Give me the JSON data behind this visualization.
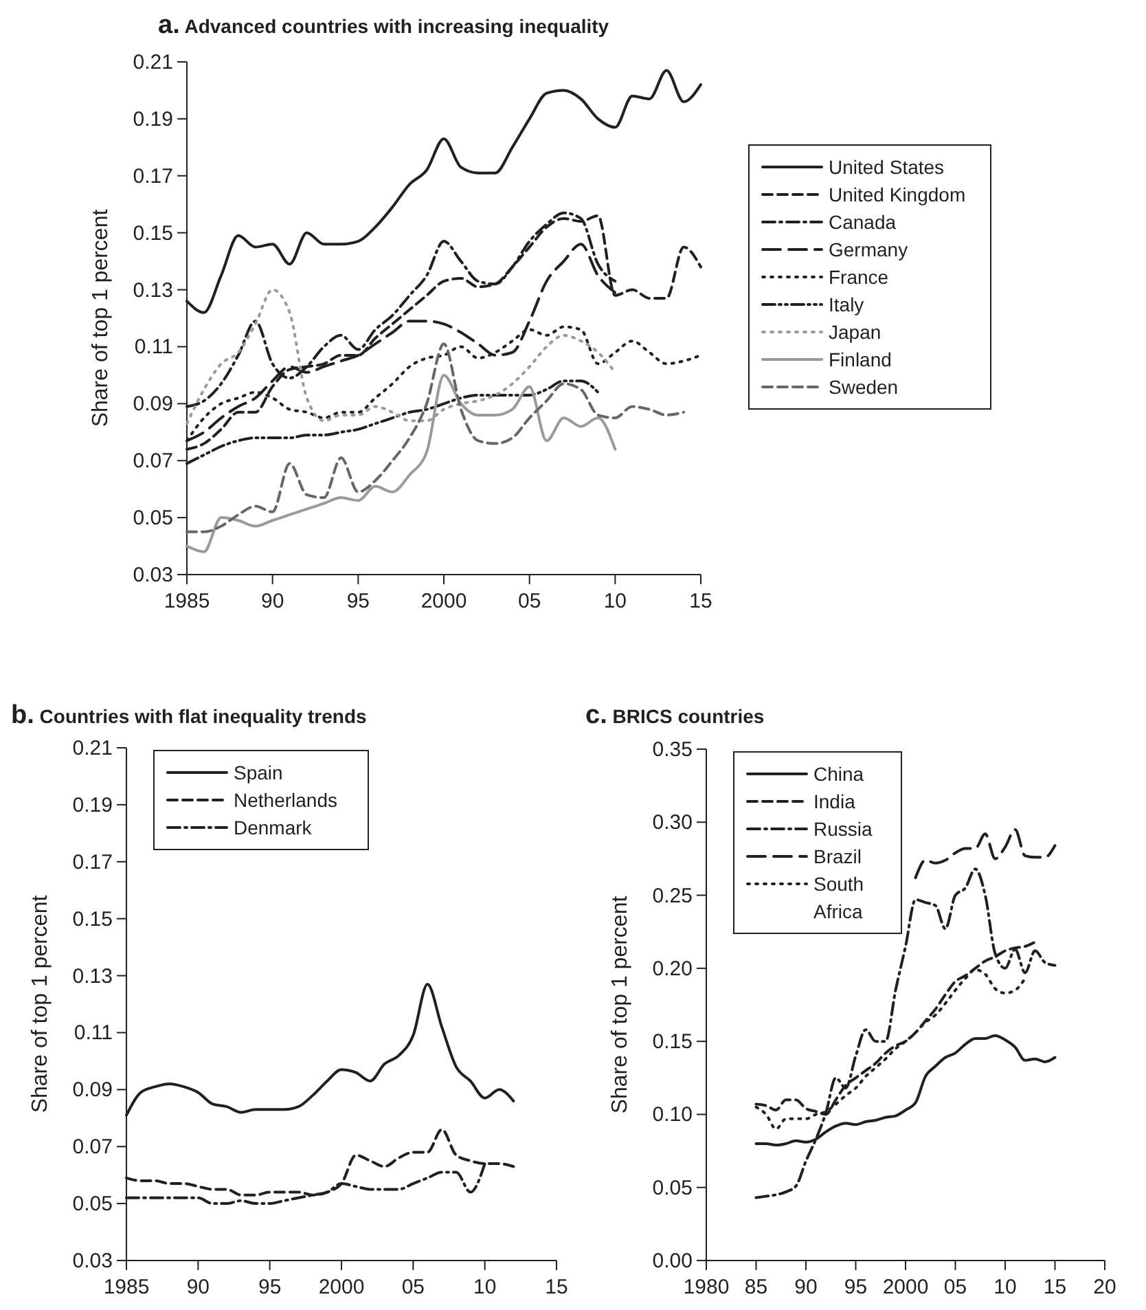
{
  "chart_data": [
    {
      "type": "line",
      "title": "a. Advanced countries with increasing inequality",
      "ylabel": "Share of top 1 percent",
      "x": [
        1985,
        1986,
        1987,
        1988,
        1989,
        1990,
        1991,
        1992,
        1993,
        1994,
        1995,
        1996,
        1997,
        1998,
        1999,
        2000,
        2001,
        2002,
        2003,
        2004,
        2005,
        2006,
        2007,
        2008,
        2009,
        2010,
        2011,
        2012,
        2013,
        2014,
        2015
      ],
      "xlim": [
        1985,
        2015
      ],
      "xticks": [
        1985,
        {
          "value": 1990,
          "label": "90"
        },
        {
          "value": 1995,
          "label": "95"
        },
        2000,
        {
          "value": 2005,
          "label": "05"
        },
        {
          "value": 2010,
          "label": "10"
        },
        {
          "value": 2015,
          "label": "15"
        }
      ],
      "ylim": [
        0.03,
        0.21
      ],
      "yticks": [
        0.03,
        0.05,
        0.07,
        0.09,
        0.11,
        0.13,
        0.15,
        0.17,
        0.19,
        0.21
      ],
      "legend": "right",
      "series": [
        {
          "name": "United States",
          "color": "#231f20",
          "line_style": "solid",
          "values": [
            0.126,
            0.122,
            0.135,
            0.149,
            0.145,
            0.146,
            0.139,
            0.15,
            0.146,
            0.146,
            0.147,
            0.152,
            0.159,
            0.167,
            0.172,
            0.183,
            0.173,
            0.171,
            0.171,
            0.18,
            0.19,
            0.199,
            0.2,
            0.197,
            0.19,
            0.187,
            0.198,
            0.197,
            0.207,
            0.196,
            0.202
          ]
        },
        {
          "name": "United Kingdom",
          "color": "#231f20",
          "line_style": "dashed",
          "values": [
            0.074,
            0.076,
            0.081,
            0.087,
            0.087,
            0.096,
            0.102,
            0.103,
            0.104,
            0.107,
            0.107,
            0.113,
            0.118,
            0.123,
            0.128,
            0.133,
            0.134,
            0.131,
            0.132,
            0.138,
            0.145,
            0.152,
            0.155,
            0.154,
            0.156,
            0.128,
            0.13,
            0.127,
            0.127,
            0.145,
            0.138
          ]
        },
        {
          "name": "Canada",
          "color": "#231f20",
          "line_style": "dashdot",
          "values": [
            0.089,
            0.091,
            0.097,
            0.107,
            0.119,
            0.104,
            0.099,
            0.103,
            0.11,
            0.114,
            0.109,
            0.116,
            0.121,
            0.128,
            0.135,
            0.147,
            0.14,
            0.133,
            0.132,
            0.138,
            0.147,
            0.153,
            0.157,
            0.155,
            0.139,
            0.133,
            null,
            null,
            null,
            null,
            null
          ]
        },
        {
          "name": "Germany",
          "color": "#231f20",
          "line_style": "longdash",
          "values": [
            0.077,
            0.08,
            0.085,
            0.089,
            0.092,
            0.098,
            0.103,
            0.101,
            0.103,
            0.105,
            0.107,
            0.111,
            0.115,
            0.119,
            0.119,
            0.118,
            0.115,
            0.111,
            0.107,
            0.108,
            0.119,
            0.133,
            0.14,
            0.146,
            0.135,
            0.129,
            null,
            null,
            null,
            null,
            null
          ]
        },
        {
          "name": "France",
          "color": "#231f20",
          "line_style": "dotted",
          "values": [
            0.077,
            0.085,
            0.09,
            0.092,
            0.094,
            0.092,
            0.088,
            0.087,
            0.085,
            0.087,
            0.087,
            0.092,
            0.097,
            0.103,
            0.106,
            0.107,
            0.11,
            0.106,
            0.108,
            0.112,
            0.116,
            0.114,
            0.117,
            0.116,
            0.104,
            0.108,
            0.112,
            0.108,
            0.104,
            0.105,
            0.107
          ]
        },
        {
          "name": "Italy",
          "color": "#231f20",
          "line_style": "dashdotdot",
          "values": [
            0.069,
            0.072,
            0.075,
            0.077,
            0.078,
            0.078,
            0.078,
            0.079,
            0.079,
            0.08,
            0.081,
            0.083,
            0.085,
            0.087,
            0.088,
            0.09,
            0.092,
            0.093,
            0.093,
            0.093,
            0.093,
            0.095,
            0.098,
            0.098,
            0.094,
            null,
            null,
            null,
            null,
            null,
            null
          ]
        },
        {
          "name": "Japan",
          "color": "#9a9a9a",
          "line_style": "dotted",
          "values": [
            0.083,
            0.095,
            0.104,
            0.108,
            0.118,
            0.13,
            0.122,
            0.092,
            0.084,
            0.086,
            0.086,
            0.089,
            0.087,
            0.084,
            0.084,
            0.088,
            0.09,
            0.091,
            0.093,
            0.097,
            0.103,
            0.11,
            0.114,
            0.112,
            0.108,
            0.101,
            null,
            null,
            null,
            null,
            null
          ]
        },
        {
          "name": "Finland",
          "color": "#9a9a9a",
          "line_style": "solid",
          "values": [
            0.04,
            0.038,
            0.05,
            0.049,
            0.047,
            0.049,
            0.051,
            0.053,
            0.055,
            0.057,
            0.056,
            0.061,
            0.059,
            0.065,
            0.073,
            0.1,
            0.09,
            0.086,
            0.086,
            0.088,
            0.096,
            0.077,
            0.085,
            0.082,
            0.085,
            0.074,
            null,
            null,
            null,
            null,
            null
          ]
        },
        {
          "name": "Sweden",
          "color": "#666666",
          "line_style": "dashed",
          "values": [
            0.045,
            0.045,
            0.047,
            0.051,
            0.054,
            0.052,
            0.069,
            0.058,
            0.057,
            0.071,
            0.059,
            0.063,
            0.07,
            0.078,
            0.09,
            0.111,
            0.088,
            0.077,
            0.076,
            0.078,
            0.085,
            0.091,
            0.097,
            0.095,
            0.086,
            0.085,
            0.089,
            0.088,
            0.086,
            0.087,
            null
          ]
        }
      ]
    },
    {
      "type": "line",
      "title": "b. Countries with flat inequality trends",
      "ylabel": "Share of top 1 percent",
      "x": [
        1985,
        1986,
        1987,
        1988,
        1989,
        1990,
        1991,
        1992,
        1993,
        1994,
        1995,
        1996,
        1997,
        1998,
        1999,
        2000,
        2001,
        2002,
        2003,
        2004,
        2005,
        2006,
        2007,
        2008,
        2009,
        2010,
        2011,
        2012
      ],
      "xlim": [
        1985,
        2015
      ],
      "xticks": [
        1985,
        {
          "value": 1990,
          "label": "90"
        },
        {
          "value": 1995,
          "label": "95"
        },
        2000,
        {
          "value": 2005,
          "label": "05"
        },
        {
          "value": 2010,
          "label": "10"
        },
        {
          "value": 2015,
          "label": "15"
        }
      ],
      "ylim": [
        0.03,
        0.21
      ],
      "yticks": [
        0.03,
        0.05,
        0.07,
        0.09,
        0.11,
        0.13,
        0.15,
        0.17,
        0.19,
        0.21
      ],
      "legend": "top left",
      "series": [
        {
          "name": "Spain",
          "color": "#231f20",
          "line_style": "solid",
          "values": [
            0.081,
            0.089,
            0.091,
            0.092,
            0.091,
            0.089,
            0.085,
            0.084,
            0.082,
            0.083,
            0.083,
            0.083,
            0.084,
            0.088,
            0.093,
            0.097,
            0.096,
            0.093,
            0.099,
            0.102,
            0.109,
            0.127,
            0.112,
            0.098,
            0.093,
            0.087,
            0.09,
            0.086
          ]
        },
        {
          "name": "Netherlands",
          "color": "#231f20",
          "line_style": "dashed",
          "values": [
            0.059,
            0.058,
            0.058,
            0.057,
            0.057,
            0.056,
            0.055,
            0.055,
            0.053,
            0.053,
            0.054,
            0.054,
            0.054,
            0.053,
            0.054,
            0.057,
            0.067,
            0.065,
            0.063,
            0.066,
            0.068,
            0.068,
            0.076,
            0.067,
            0.065,
            0.064,
            0.064,
            0.063
          ]
        },
        {
          "name": "Denmark",
          "color": "#231f20",
          "line_style": "dashdot",
          "values": [
            0.052,
            0.052,
            0.052,
            0.052,
            0.052,
            0.052,
            0.05,
            0.05,
            0.051,
            0.05,
            0.05,
            0.051,
            0.052,
            0.053,
            0.054,
            0.057,
            0.056,
            0.055,
            0.055,
            0.055,
            0.057,
            0.059,
            0.061,
            0.061,
            0.054,
            0.064,
            null,
            null
          ]
        }
      ]
    },
    {
      "type": "line",
      "title": "c. BRICS countries",
      "ylabel": "Share of top 1 percent",
      "x": [
        1985,
        1986,
        1987,
        1988,
        1989,
        1990,
        1991,
        1992,
        1993,
        1994,
        1995,
        1996,
        1997,
        1998,
        1999,
        2000,
        2001,
        2002,
        2003,
        2004,
        2005,
        2006,
        2007,
        2008,
        2009,
        2010,
        2011,
        2012,
        2013,
        2014,
        2015
      ],
      "xlim": [
        1980,
        2020
      ],
      "xticks": [
        1980,
        {
          "value": 1985,
          "label": "85"
        },
        {
          "value": 1990,
          "label": "90"
        },
        {
          "value": 1995,
          "label": "95"
        },
        2000,
        {
          "value": 2005,
          "label": "05"
        },
        {
          "value": 2010,
          "label": "10"
        },
        {
          "value": 2015,
          "label": "15"
        },
        {
          "value": 2020,
          "label": "20"
        }
      ],
      "ylim": [
        0,
        0.35
      ],
      "yticks": [
        {
          "value": 0,
          "label": "0.00"
        },
        0.05,
        {
          "value": 0.1,
          "label": "0.10"
        },
        0.15,
        {
          "value": 0.2,
          "label": "0.20"
        },
        0.25,
        {
          "value": 0.3,
          "label": "0.30"
        },
        0.35
      ],
      "legend": "top left",
      "series": [
        {
          "name": "China",
          "color": "#231f20",
          "line_style": "solid",
          "values": [
            0.08,
            0.08,
            0.079,
            0.08,
            0.082,
            0.081,
            0.083,
            0.088,
            0.092,
            0.094,
            0.093,
            0.095,
            0.096,
            0.098,
            0.099,
            0.103,
            0.108,
            0.126,
            0.133,
            0.139,
            0.142,
            0.148,
            0.152,
            0.152,
            0.154,
            0.151,
            0.146,
            0.137,
            0.138,
            0.136,
            0.139
          ]
        },
        {
          "name": "India",
          "color": "#231f20",
          "line_style": "dashed",
          "values": [
            0.107,
            0.106,
            0.103,
            0.11,
            0.11,
            0.104,
            0.102,
            0.1,
            0.11,
            0.12,
            0.125,
            0.13,
            0.135,
            0.142,
            0.147,
            0.15,
            0.156,
            0.164,
            0.172,
            0.182,
            0.191,
            0.195,
            0.2,
            0.205,
            0.208,
            0.212,
            0.214,
            0.215,
            0.218,
            null,
            null
          ]
        },
        {
          "name": "Russia",
          "color": "#231f20",
          "line_style": "dashdot",
          "values": [
            0.043,
            0.044,
            0.045,
            0.047,
            0.051,
            0.068,
            0.083,
            0.101,
            0.125,
            0.118,
            0.14,
            0.158,
            0.15,
            0.15,
            0.185,
            0.215,
            0.247,
            0.245,
            0.243,
            0.227,
            0.25,
            0.255,
            0.268,
            0.25,
            0.21,
            0.2,
            0.213,
            0.197,
            0.212,
            0.204,
            0.202
          ]
        },
        {
          "name": "Brazil",
          "color": "#231f20",
          "line_style": "longdash",
          "values": [
            null,
            null,
            null,
            null,
            null,
            null,
            null,
            null,
            null,
            null,
            null,
            null,
            null,
            null,
            null,
            null,
            0.262,
            0.274,
            0.272,
            0.274,
            0.279,
            0.282,
            0.282,
            0.292,
            0.275,
            0.283,
            0.295,
            0.277,
            0.276,
            0.276,
            0.284
          ]
        },
        {
          "name": "South Africa",
          "color": "#231f20",
          "line_style": "dotted",
          "values": [
            0.105,
            0.1,
            0.09,
            0.097,
            0.097,
            0.097,
            0.1,
            0.102,
            0.107,
            0.113,
            0.118,
            0.126,
            0.132,
            0.138,
            0.145,
            0.15,
            0.156,
            0.163,
            0.168,
            0.176,
            0.185,
            0.193,
            0.199,
            0.196,
            0.186,
            0.183,
            0.185,
            0.193,
            null,
            null,
            null
          ]
        }
      ]
    }
  ]
}
